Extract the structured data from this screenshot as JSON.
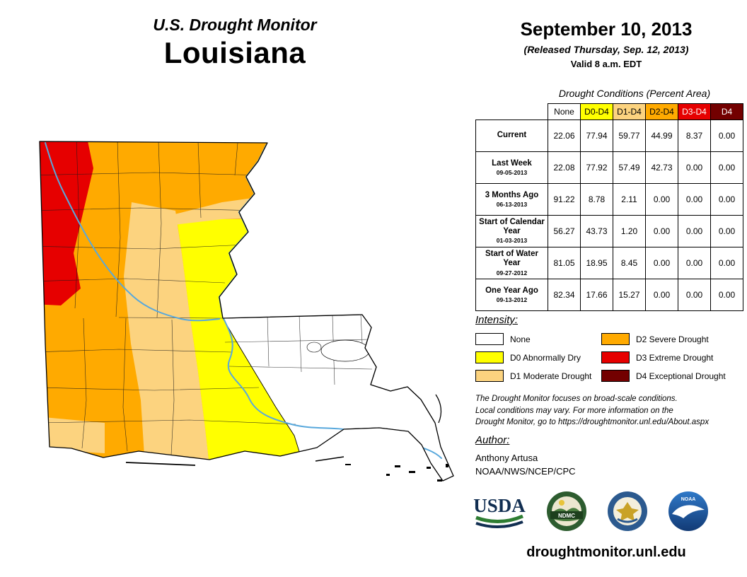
{
  "header": {
    "title": "U.S. Drought Monitor",
    "state": "Louisiana",
    "date": "September 10, 2013",
    "released": "(Released Thursday, Sep. 12, 2013)",
    "valid": "Valid 8 a.m. EDT"
  },
  "table": {
    "caption": "Drought Conditions (Percent Area)",
    "columns": [
      {
        "label": "None",
        "bg": "#FFFFFF",
        "fg": "#000000"
      },
      {
        "label": "D0-D4",
        "bg": "#FFFF00",
        "fg": "#000000"
      },
      {
        "label": "D1-D4",
        "bg": "#FCD37F",
        "fg": "#000000"
      },
      {
        "label": "D2-D4",
        "bg": "#FFAA00",
        "fg": "#000000"
      },
      {
        "label": "D3-D4",
        "bg": "#E60000",
        "fg": "#FFFFFF"
      },
      {
        "label": "D4",
        "bg": "#730000",
        "fg": "#FFFFFF"
      }
    ],
    "rows": [
      {
        "label": "Current",
        "date": "",
        "values": [
          "22.06",
          "77.94",
          "59.77",
          "44.99",
          "8.37",
          "0.00"
        ]
      },
      {
        "label": "Last Week",
        "date": "09-05-2013",
        "values": [
          "22.08",
          "77.92",
          "57.49",
          "42.73",
          "0.00",
          "0.00"
        ]
      },
      {
        "label": "3 Months Ago",
        "date": "06-13-2013",
        "values": [
          "91.22",
          "8.78",
          "2.11",
          "0.00",
          "0.00",
          "0.00"
        ]
      },
      {
        "label": "Start of Calendar Year",
        "date": "01-03-2013",
        "values": [
          "56.27",
          "43.73",
          "1.20",
          "0.00",
          "0.00",
          "0.00"
        ]
      },
      {
        "label": "Start of Water Year",
        "date": "09-27-2012",
        "values": [
          "81.05",
          "18.95",
          "8.45",
          "0.00",
          "0.00",
          "0.00"
        ]
      },
      {
        "label": "One Year Ago",
        "date": "09-13-2012",
        "values": [
          "82.34",
          "17.66",
          "15.27",
          "0.00",
          "0.00",
          "0.00"
        ]
      }
    ]
  },
  "legend": {
    "heading": "Intensity:",
    "items": [
      {
        "code": "none",
        "label": "None",
        "color": "#FFFFFF"
      },
      {
        "code": "d0",
        "label": "D0 Abnormally Dry",
        "color": "#FFFF00"
      },
      {
        "code": "d1",
        "label": "D1 Moderate Drought",
        "color": "#FCD37F"
      },
      {
        "code": "d2",
        "label": "D2 Severe Drought",
        "color": "#FFAA00"
      },
      {
        "code": "d3",
        "label": "D3 Extreme Drought",
        "color": "#E60000"
      },
      {
        "code": "d4",
        "label": "D4 Exceptional Drought",
        "color": "#730000"
      }
    ]
  },
  "notes": {
    "line1": "The Drought Monitor focuses on broad-scale conditions.",
    "line2": "Local conditions may vary. For more information on the",
    "line3": "Drought Monitor, go to https://droughtmonitor.unl.edu/About.aspx"
  },
  "author": {
    "heading": "Author:",
    "name": "Anthony Artusa",
    "org": "NOAA/NWS/NCEP/CPC"
  },
  "logos": {
    "usda_label": "USDA",
    "ndmc_label": "NDMC",
    "noaa_label": "NOAA"
  },
  "footer": {
    "url": "droughtmonitor.unl.edu"
  },
  "map": {
    "river_color": "#58A8DC"
  }
}
